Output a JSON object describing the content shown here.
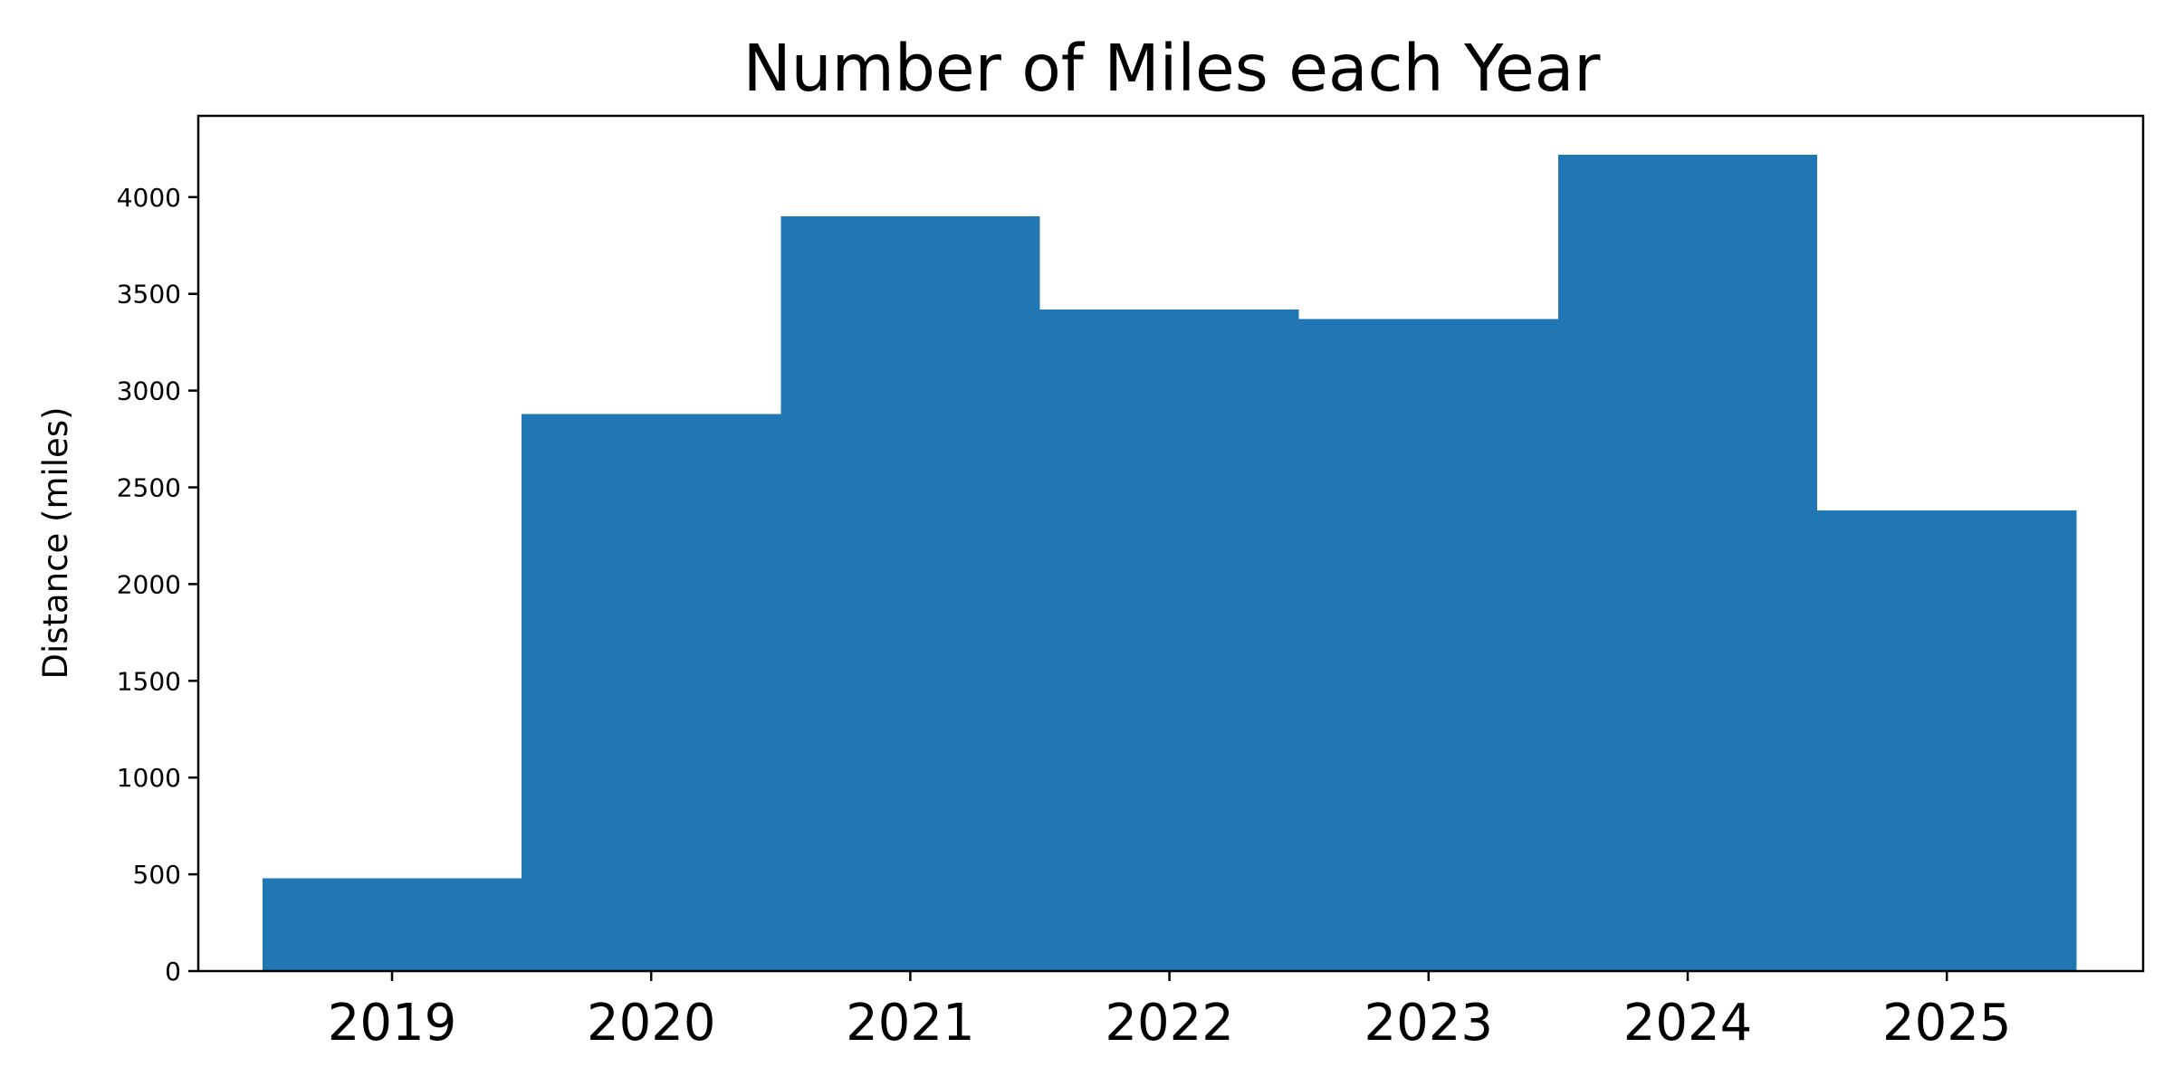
{
  "chart_data": {
    "type": "bar",
    "title": "Number of Miles each Year",
    "xlabel": "",
    "ylabel": "Distance (miles)",
    "categories": [
      "2019",
      "2020",
      "2021",
      "2022",
      "2023",
      "2024",
      "2025"
    ],
    "values": [
      480,
      2880,
      3900,
      3420,
      3370,
      4220,
      2380
    ],
    "ylim": [
      0,
      4420
    ],
    "yticks": [
      0,
      500,
      1000,
      1500,
      2000,
      2500,
      3000,
      3500,
      4000
    ],
    "ytick_labels": [
      "0",
      "500",
      "1000",
      "1500",
      "2000",
      "2500",
      "3000",
      "3500",
      "4000"
    ],
    "bar_color": "#2077b4",
    "grid": false,
    "legend": "none"
  }
}
